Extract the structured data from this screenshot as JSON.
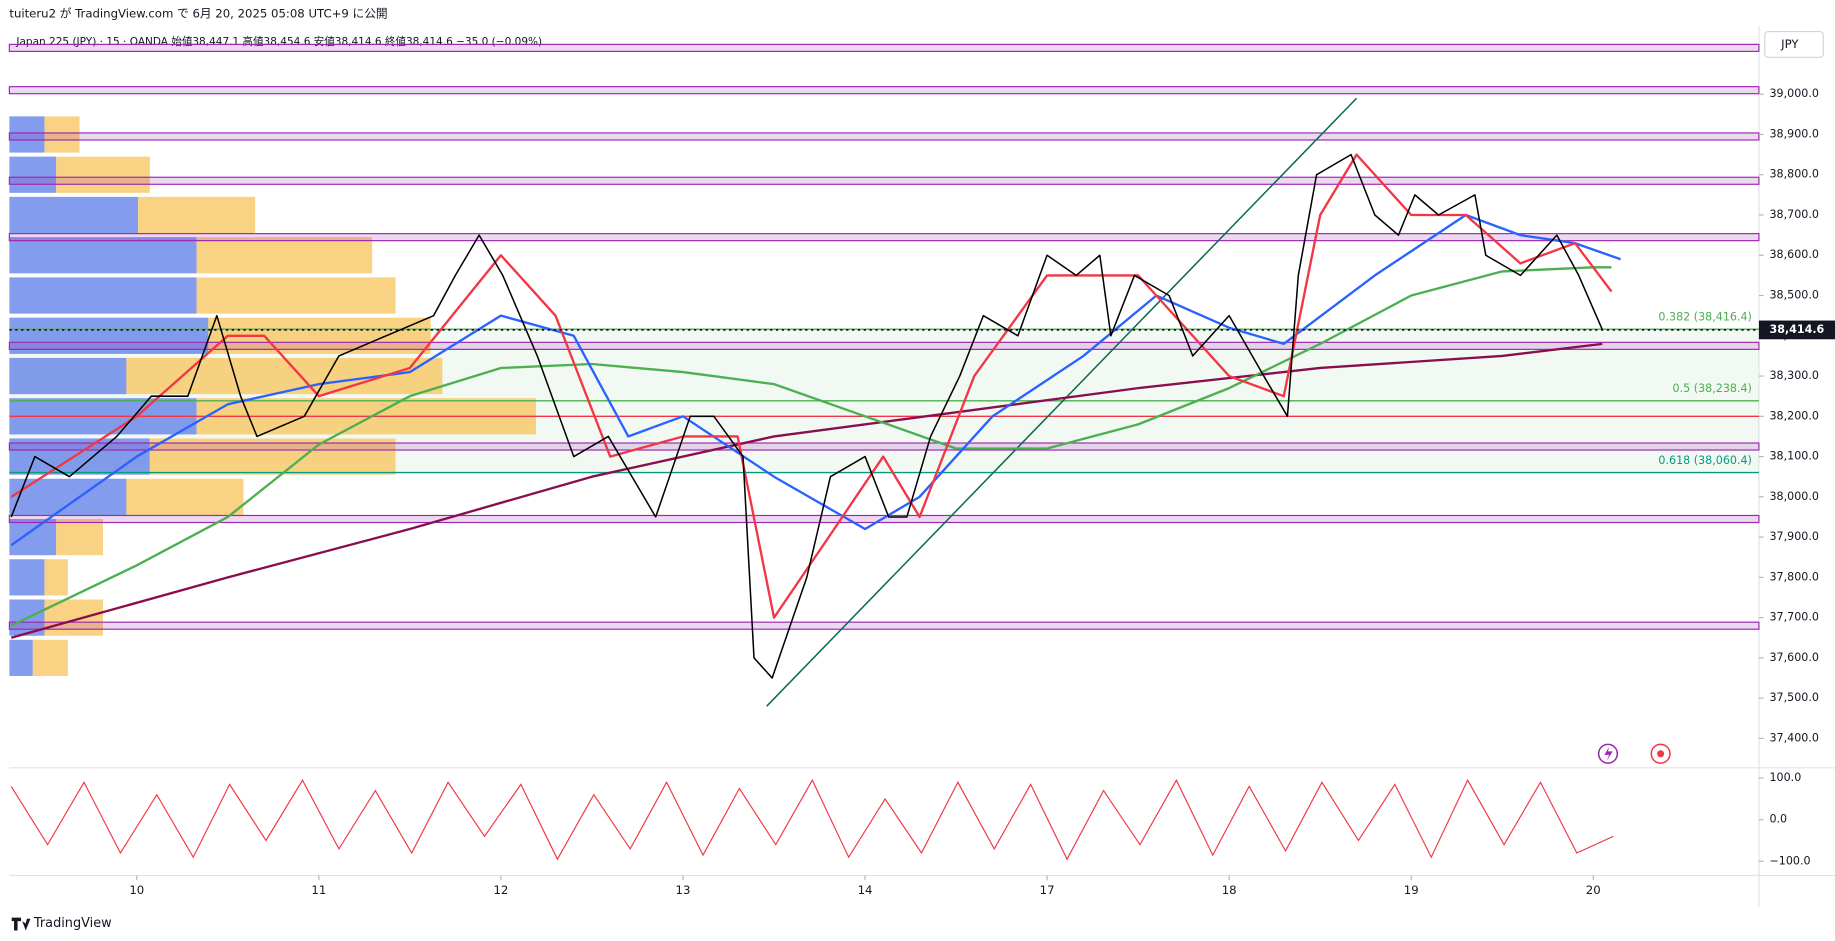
{
  "header": {
    "publisher": "tuiteru2 が TradingView.com で 6月 20, 2025 05:08 UTC+9 に公開"
  },
  "footer": {
    "brand": "TradingView"
  },
  "chart_data": {
    "type": "line",
    "title": "Japan 225 (JPY) · 15 · OANDA  始値38,447.1  高値38,454.6  安値38,414.6  終値38,414.6  −35.0 (−0.09%)",
    "currency": "JPY",
    "xlim": [
      0.3,
      9.91
    ],
    "xticks": [
      {
        "value": 1,
        "label": "10"
      },
      {
        "value": 2,
        "label": "11"
      },
      {
        "value": 3,
        "label": "12"
      },
      {
        "value": 4,
        "label": "13"
      },
      {
        "value": 5,
        "label": "14"
      },
      {
        "value": 6,
        "label": "17"
      },
      {
        "value": 7,
        "label": "18"
      },
      {
        "value": 8,
        "label": "19"
      },
      {
        "value": 9,
        "label": "20"
      }
    ],
    "ylim": [
      37330,
      39170
    ],
    "yticks": [
      {
        "value": 37400,
        "label": "37,400.0"
      },
      {
        "value": 37500,
        "label": "37,500.0"
      },
      {
        "value": 37600,
        "label": "37,600.0"
      },
      {
        "value": 37700,
        "label": "37,700.0"
      },
      {
        "value": 37800,
        "label": "37,800.0"
      },
      {
        "value": 37900,
        "label": "37,900.0"
      },
      {
        "value": 38000,
        "label": "38,000.0"
      },
      {
        "value": 38100,
        "label": "38,100.0"
      },
      {
        "value": 38200,
        "label": "38,200.0"
      },
      {
        "value": 38300,
        "label": "38,300.0"
      },
      {
        "value": 38400,
        "label": "38,400.0"
      },
      {
        "value": 38500,
        "label": "38,500.0"
      },
      {
        "value": 38600,
        "label": "38,600.0"
      },
      {
        "value": 38700,
        "label": "38,700.0"
      },
      {
        "value": 38800,
        "label": "38,800.0"
      },
      {
        "value": 38900,
        "label": "38,900.0"
      },
      {
        "value": 39000,
        "label": "39,000.0"
      }
    ],
    "last_price": {
      "value": 38414.6,
      "label": "38,414.6"
    },
    "series": [
      {
        "color": "#000000",
        "x": [
          0.31,
          0.44,
          0.63,
          0.89,
          1.08,
          1.28,
          1.44,
          1.57,
          1.66,
          1.92,
          2.11,
          2.37,
          2.63,
          2.75,
          2.88,
          3.01,
          3.2,
          3.4,
          3.59,
          3.85,
          4.04,
          4.17,
          4.33,
          4.39,
          4.49,
          4.68,
          4.81,
          5.0,
          5.13,
          5.23,
          5.36,
          5.52,
          5.65,
          5.84,
          6.0,
          6.16,
          6.29,
          6.35,
          6.48,
          6.67,
          6.8,
          7.0,
          7.19,
          7.32,
          7.38,
          7.48,
          7.67,
          7.8,
          7.93,
          8.02,
          8.15,
          8.35,
          8.41,
          8.6,
          8.8,
          8.92,
          9.05
        ],
        "values": [
          37950,
          38100,
          38050,
          38150,
          38250,
          38250,
          38450,
          38250,
          38150,
          38200,
          38350,
          38400,
          38450,
          38550,
          38650,
          38550,
          38350,
          38100,
          38150,
          37950,
          38200,
          38200,
          38100,
          37600,
          37550,
          37800,
          38050,
          38100,
          37950,
          37950,
          38150,
          38300,
          38450,
          38400,
          38600,
          38550,
          38600,
          38400,
          38550,
          38500,
          38350,
          38450,
          38300,
          38200,
          38550,
          38800,
          38850,
          38700,
          38650,
          38750,
          38700,
          38750,
          38600,
          38550,
          38650,
          38550,
          38415
        ]
      },
      {
        "color": "#880e4f",
        "x": [
          0.31,
          1.5,
          2.5,
          3.5,
          4.5,
          5.5,
          6.5,
          7.5,
          8.5,
          9.05
        ],
        "values": [
          37650,
          37800,
          37920,
          38050,
          38150,
          38210,
          38270,
          38320,
          38350,
          38380
        ]
      },
      {
        "color": "#4caf50",
        "x": [
          0.31,
          1.0,
          1.5,
          2.0,
          2.5,
          3.0,
          3.5,
          4.0,
          4.5,
          5.0,
          5.5,
          6.0,
          6.5,
          7.0,
          7.5,
          8.0,
          8.5,
          9.0,
          9.1
        ],
        "values": [
          37680,
          37830,
          37950,
          38130,
          38250,
          38320,
          38330,
          38310,
          38280,
          38200,
          38120,
          38120,
          38180,
          38270,
          38380,
          38500,
          38560,
          38570,
          38570
        ]
      },
      {
        "color": "#2962ff",
        "x": [
          0.31,
          1.0,
          1.5,
          2.0,
          2.5,
          3.0,
          3.4,
          3.7,
          4.0,
          4.5,
          5.0,
          5.3,
          5.7,
          6.2,
          6.6,
          7.0,
          7.3,
          7.8,
          8.3,
          8.6,
          8.9,
          9.15
        ],
        "values": [
          37880,
          38100,
          38230,
          38280,
          38310,
          38450,
          38400,
          38150,
          38200,
          38050,
          37920,
          38000,
          38200,
          38350,
          38500,
          38420,
          38380,
          38550,
          38700,
          38650,
          38630,
          38590
        ]
      },
      {
        "color": "#f23645",
        "x": [
          0.31,
          1.0,
          1.5,
          1.7,
          2.0,
          2.5,
          3.0,
          3.3,
          3.6,
          4.0,
          4.3,
          4.5,
          4.8,
          5.1,
          5.3,
          5.6,
          6.0,
          6.5,
          7.0,
          7.3,
          7.5,
          7.7,
          8.0,
          8.3,
          8.6,
          8.9,
          9.1
        ],
        "values": [
          38000,
          38200,
          38400,
          38400,
          38250,
          38320,
          38600,
          38450,
          38100,
          38150,
          38150,
          37700,
          37900,
          38100,
          37950,
          38300,
          38550,
          38550,
          38300,
          38250,
          38700,
          38850,
          38700,
          38700,
          38580,
          38630,
          38510
        ]
      }
    ],
    "levels": {
      "color": "#9c27b0",
      "values": [
        39115,
        39010,
        38895,
        38785,
        38645,
        38375,
        38125,
        37945,
        37680
      ]
    },
    "support": {
      "color": "#f23645",
      "value": 38200
    },
    "fib": [
      {
        "value": 38416.4,
        "label": "0.382 (38,416.4)",
        "color": "#4caf50"
      },
      {
        "value": 38238.4,
        "label": "0.5 (38,238.4)",
        "color": "#4caf50"
      },
      {
        "value": 38060.4,
        "label": "0.618 (38,060.4)",
        "color": "#089981"
      }
    ],
    "trendline": {
      "color": "#0a6b4f",
      "x": [
        4.46,
        7.7
      ],
      "values": [
        37480,
        38990
      ]
    },
    "volume_profile": {
      "levels": [
        38900,
        38800,
        38700,
        38600,
        38500,
        38400,
        38300,
        38200,
        38100,
        38000,
        37900,
        37800,
        37700,
        37600
      ],
      "up": [
        30,
        40,
        110,
        160,
        160,
        170,
        100,
        160,
        120,
        100,
        40,
        30,
        30,
        20
      ],
      "down": [
        30,
        80,
        100,
        150,
        170,
        190,
        270,
        290,
        210,
        100,
        40,
        20,
        50,
        30
      ],
      "colors": [
        "#5b7be8",
        "#f7c35a"
      ]
    },
    "oscillator": {
      "color": "#f23645",
      "ylim": [
        -134,
        122
      ],
      "yticks": [
        {
          "value": 100,
          "label": "100.0"
        },
        {
          "value": 0,
          "label": "0.0"
        },
        {
          "value": -100,
          "label": "−100.0"
        }
      ],
      "x": [
        0.31,
        0.51,
        0.71,
        0.91,
        1.11,
        1.31,
        1.51,
        1.71,
        1.91,
        2.11,
        2.31,
        2.51,
        2.71,
        2.91,
        3.11,
        3.31,
        3.51,
        3.71,
        3.91,
        4.11,
        4.31,
        4.51,
        4.71,
        4.91,
        5.11,
        5.31,
        5.51,
        5.71,
        5.91,
        6.11,
        6.31,
        6.51,
        6.71,
        6.91,
        7.11,
        7.31,
        7.51,
        7.71,
        7.91,
        8.11,
        8.31,
        8.51,
        8.71,
        8.91,
        9.11
      ],
      "values": [
        80,
        -60,
        90,
        -80,
        60,
        -90,
        85,
        -50,
        95,
        -70,
        70,
        -80,
        90,
        -40,
        85,
        -95,
        60,
        -70,
        90,
        -85,
        75,
        -60,
        95,
        -90,
        50,
        -80,
        90,
        -70,
        85,
        -95,
        70,
        -60,
        95,
        -85,
        80,
        -75,
        90,
        -50,
        85,
        -90,
        95,
        -60,
        90,
        -80,
        -40
      ]
    }
  }
}
